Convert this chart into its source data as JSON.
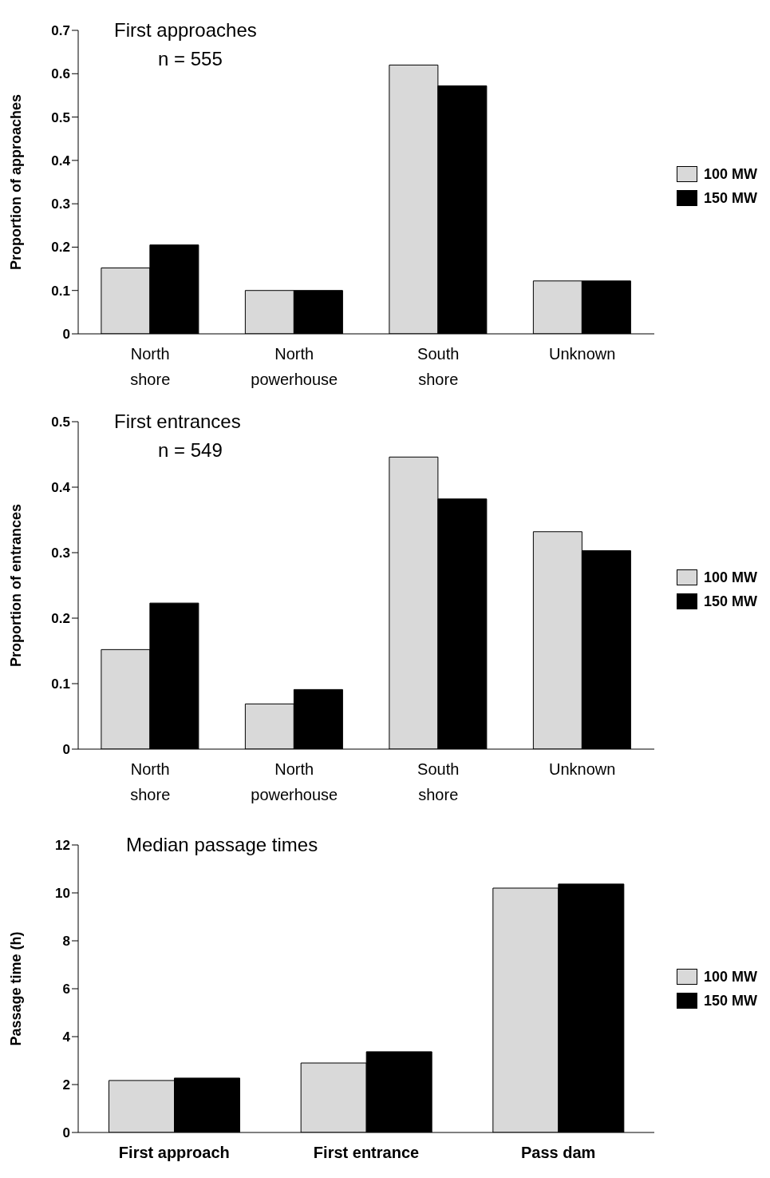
{
  "chart_data": [
    {
      "type": "bar",
      "title": "First approaches",
      "subtitle": "n = 555",
      "ylabel": "Proportion of approaches",
      "categories": [
        "North\nshore",
        "North\npowerhouse",
        "South\nshore",
        "Unknown"
      ],
      "series": [
        {
          "name": "100 MW",
          "color": "#d9d9d9",
          "values": [
            0.152,
            0.1,
            0.62,
            0.122
          ]
        },
        {
          "name": "150 MW",
          "color": "#000000",
          "values": [
            0.205,
            0.1,
            0.572,
            0.122
          ]
        }
      ],
      "ylim": [
        0,
        0.7
      ],
      "yticks": [
        0,
        0.1,
        0.2,
        0.3,
        0.4,
        0.5,
        0.6,
        0.7
      ],
      "legend": "right",
      "grid": false
    },
    {
      "type": "bar",
      "title": "First entrances",
      "subtitle": "n = 549",
      "ylabel": "Proportion of entrances",
      "categories": [
        "North\nshore",
        "North\npowerhouse",
        "South\nshore",
        "Unknown"
      ],
      "series": [
        {
          "name": "100 MW",
          "color": "#d9d9d9",
          "values": [
            0.152,
            0.069,
            0.446,
            0.332
          ]
        },
        {
          "name": "150 MW",
          "color": "#000000",
          "values": [
            0.223,
            0.091,
            0.382,
            0.303
          ]
        }
      ],
      "ylim": [
        0,
        0.5
      ],
      "yticks": [
        0,
        0.1,
        0.2,
        0.3,
        0.4,
        0.5
      ],
      "legend": "right",
      "grid": false
    },
    {
      "type": "bar",
      "title": "Median passage times",
      "ylabel": "Passage time (h)",
      "categories": [
        "First approach",
        "First entrance",
        "Pass dam"
      ],
      "series": [
        {
          "name": "100 MW",
          "color": "#d9d9d9",
          "values": [
            2.17,
            2.9,
            10.2
          ]
        },
        {
          "name": "150 MW",
          "color": "#000000",
          "values": [
            2.27,
            3.37,
            10.37
          ]
        }
      ],
      "ylim": [
        0,
        12
      ],
      "yticks": [
        0,
        2,
        4,
        6,
        8,
        10,
        12
      ],
      "legend": "right",
      "grid": false
    }
  ]
}
